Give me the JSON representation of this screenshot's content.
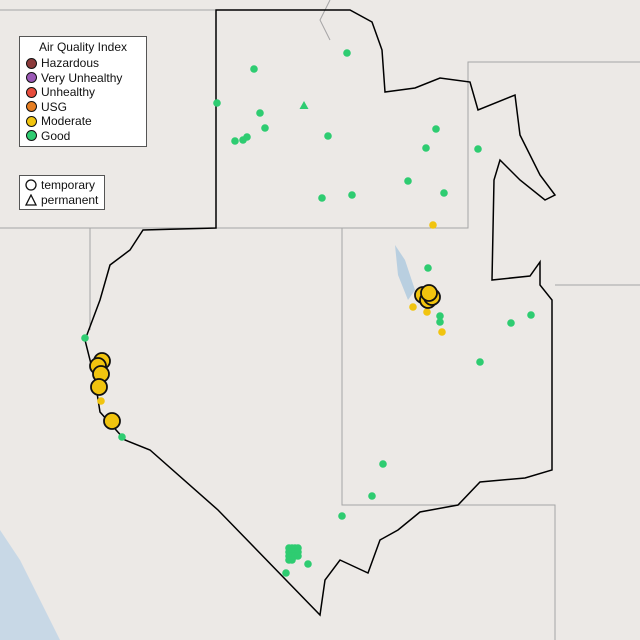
{
  "legend": {
    "title": "Air Quality Index",
    "categories": [
      {
        "label": "Hazardous",
        "color": "#8b3a3a"
      },
      {
        "label": "Very Unhealthy",
        "color": "#9b59b6"
      },
      {
        "label": "Unhealthy",
        "color": "#e74c3c"
      },
      {
        "label": "USG",
        "color": "#e67e22"
      },
      {
        "label": "Moderate",
        "color": "#f1c40f"
      },
      {
        "label": "Good",
        "color": "#2ecc71"
      }
    ]
  },
  "shape_legend": {
    "items": [
      {
        "label": "temporary",
        "shape": "circle"
      },
      {
        "label": "permanent",
        "shape": "triangle"
      }
    ]
  },
  "colors": {
    "background": "#ece9e6",
    "water": "#b9cfe0",
    "boundary": "#000000",
    "state_lines": "#9a9a9a"
  }
}
